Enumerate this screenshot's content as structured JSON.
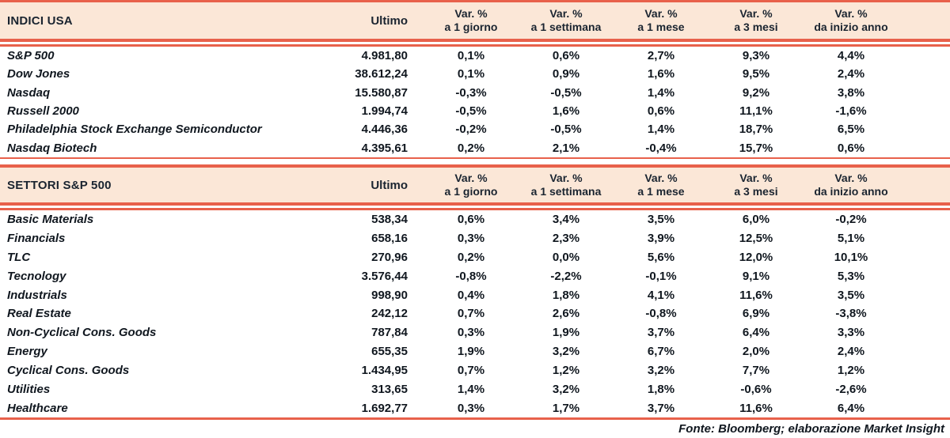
{
  "colors": {
    "accent_red": "#E8614B",
    "header_band_bg": "#FBE7D7",
    "header_text": "#1A2430",
    "body_text": "#10171F"
  },
  "tables": [
    {
      "title": "INDICI USA",
      "ultimo_label": "Ultimo",
      "var_headers": [
        {
          "line1": "Var. %",
          "line2": "a 1 giorno"
        },
        {
          "line1": "Var. %",
          "line2": "a 1 settimana"
        },
        {
          "line1": "Var. %",
          "line2": "a 1 mese"
        },
        {
          "line1": "Var. %",
          "line2": "a 3 mesi"
        },
        {
          "line1": "Var. %",
          "line2": "da inizio anno"
        }
      ],
      "rows": [
        {
          "name": "S&P 500",
          "ultimo": "4.981,80",
          "vars": [
            "0,1%",
            "0,6%",
            "2,7%",
            "9,3%",
            "4,4%"
          ]
        },
        {
          "name": "Dow Jones",
          "ultimo": "38.612,24",
          "vars": [
            "0,1%",
            "0,9%",
            "1,6%",
            "9,5%",
            "2,4%"
          ]
        },
        {
          "name": "Nasdaq",
          "ultimo": "15.580,87",
          "vars": [
            "-0,3%",
            "-0,5%",
            "1,4%",
            "9,2%",
            "3,8%"
          ]
        },
        {
          "name": "Russell 2000",
          "ultimo": "1.994,74",
          "vars": [
            "-0,5%",
            "1,6%",
            "0,6%",
            "11,1%",
            "-1,6%"
          ]
        },
        {
          "name": "Philadelphia Stock Exchange Semiconductor",
          "ultimo": "4.446,36",
          "vars": [
            "-0,2%",
            "-0,5%",
            "1,4%",
            "18,7%",
            "6,5%"
          ]
        },
        {
          "name": "Nasdaq Biotech",
          "ultimo": "4.395,61",
          "vars": [
            "0,2%",
            "2,1%",
            "-0,4%",
            "15,7%",
            "0,6%"
          ]
        }
      ]
    },
    {
      "title": "SETTORI S&P 500",
      "ultimo_label": "Ultimo",
      "var_headers": [
        {
          "line1": "Var. %",
          "line2": "a 1 giorno"
        },
        {
          "line1": "Var. %",
          "line2": "a 1 settimana"
        },
        {
          "line1": "Var. %",
          "line2": "a 1 mese"
        },
        {
          "line1": "Var. %",
          "line2": "a 3 mesi"
        },
        {
          "line1": "Var. %",
          "line2": "da inizio anno"
        }
      ],
      "rows": [
        {
          "name": "Basic Materials",
          "ultimo": "538,34",
          "vars": [
            "0,6%",
            "3,4%",
            "3,5%",
            "6,0%",
            "-0,2%"
          ]
        },
        {
          "name": "Financials",
          "ultimo": "658,16",
          "vars": [
            "0,3%",
            "2,3%",
            "3,9%",
            "12,5%",
            "5,1%"
          ]
        },
        {
          "name": "TLC",
          "ultimo": "270,96",
          "vars": [
            "0,2%",
            "0,0%",
            "5,6%",
            "12,0%",
            "10,1%"
          ]
        },
        {
          "name": "Tecnology",
          "ultimo": "3.576,44",
          "vars": [
            "-0,8%",
            "-2,2%",
            "-0,1%",
            "9,1%",
            "5,3%"
          ]
        },
        {
          "name": "Industrials",
          "ultimo": "998,90",
          "vars": [
            "0,4%",
            "1,8%",
            "4,1%",
            "11,6%",
            "3,5%"
          ]
        },
        {
          "name": "Real Estate",
          "ultimo": "242,12",
          "vars": [
            "0,7%",
            "2,6%",
            "-0,8%",
            "6,9%",
            "-3,8%"
          ]
        },
        {
          "name": "Non-Cyclical Cons. Goods",
          "ultimo": "787,84",
          "vars": [
            "0,3%",
            "1,9%",
            "3,7%",
            "6,4%",
            "3,3%"
          ]
        },
        {
          "name": "Energy",
          "ultimo": "655,35",
          "vars": [
            "1,9%",
            "3,2%",
            "6,7%",
            "2,0%",
            "2,4%"
          ]
        },
        {
          "name": "Cyclical Cons. Goods",
          "ultimo": "1.434,95",
          "vars": [
            "0,7%",
            "1,2%",
            "3,2%",
            "7,7%",
            "1,2%"
          ]
        },
        {
          "name": "Utilities",
          "ultimo": "313,65",
          "vars": [
            "1,4%",
            "3,2%",
            "1,8%",
            "-0,6%",
            "-2,6%"
          ]
        },
        {
          "name": "Healthcare",
          "ultimo": "1.692,77",
          "vars": [
            "0,3%",
            "1,7%",
            "3,7%",
            "11,6%",
            "6,4%"
          ]
        }
      ]
    }
  ],
  "footer": {
    "source_note": "Fonte: Bloomberg; elaborazione Market Insight"
  }
}
